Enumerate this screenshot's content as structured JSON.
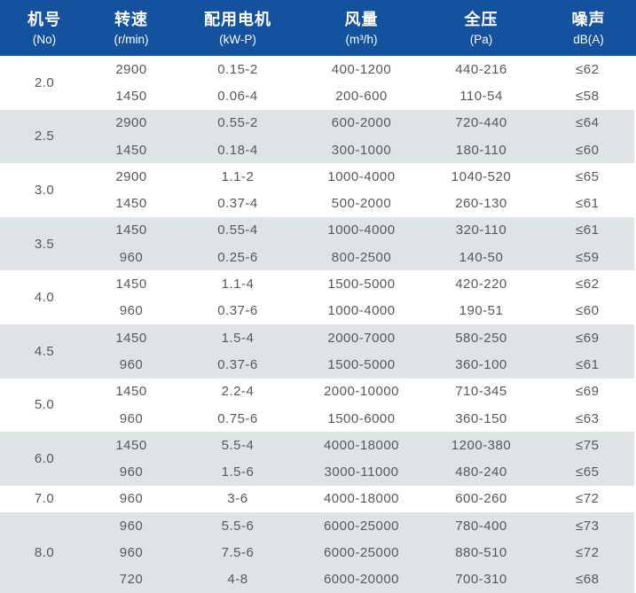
{
  "table": {
    "title": "fan-specification-table",
    "colors": {
      "header_bg": "#14519e",
      "header_text": "#ffffff",
      "row_bg": "#ffffff",
      "row_alt_bg": "#dee3e6",
      "cell_text": "#56585b"
    },
    "header": {
      "columns": [
        {
          "label": "机号",
          "unit": "(No)"
        },
        {
          "label": "转速",
          "unit": "(r/min)"
        },
        {
          "label": "配用电机",
          "unit": "(kW-P)"
        },
        {
          "label": "风量",
          "unit": "(m³/h)"
        },
        {
          "label": "全压",
          "unit": "(Pa)"
        },
        {
          "label": "噪声",
          "unit": "dB(A)"
        }
      ]
    },
    "groups": [
      {
        "no": "2.0",
        "rows": [
          {
            "speed": "2900",
            "motor": "0.15-2",
            "airflow": "400-1200",
            "pressure": "440-216",
            "noise": "≤62"
          },
          {
            "speed": "1450",
            "motor": "0.06-4",
            "airflow": "200-600",
            "pressure": "110-54",
            "noise": "≤58"
          }
        ]
      },
      {
        "no": "2.5",
        "rows": [
          {
            "speed": "2900",
            "motor": "0.55-2",
            "airflow": "600-2000",
            "pressure": "720-440",
            "noise": "≤64"
          },
          {
            "speed": "1450",
            "motor": "0.18-4",
            "airflow": "300-1000",
            "pressure": "180-110",
            "noise": "≤60"
          }
        ]
      },
      {
        "no": "3.0",
        "rows": [
          {
            "speed": "2900",
            "motor": "1.1-2",
            "airflow": "1000-4000",
            "pressure": "1040-520",
            "noise": "≤65"
          },
          {
            "speed": "1450",
            "motor": "0.37-4",
            "airflow": "500-2000",
            "pressure": "260-130",
            "noise": "≤61"
          }
        ]
      },
      {
        "no": "3.5",
        "rows": [
          {
            "speed": "1450",
            "motor": "0.55-4",
            "airflow": "1000-4000",
            "pressure": "320-110",
            "noise": "≤61"
          },
          {
            "speed": "960",
            "motor": "0.25-6",
            "airflow": "800-2500",
            "pressure": "140-50",
            "noise": "≤59"
          }
        ]
      },
      {
        "no": "4.0",
        "rows": [
          {
            "speed": "1450",
            "motor": "1.1-4",
            "airflow": "1500-5000",
            "pressure": "420-220",
            "noise": "≤62"
          },
          {
            "speed": "960",
            "motor": "0.37-6",
            "airflow": "1000-4000",
            "pressure": "190-51",
            "noise": "≤60"
          }
        ]
      },
      {
        "no": "4.5",
        "rows": [
          {
            "speed": "1450",
            "motor": "1.5-4",
            "airflow": "2000-7000",
            "pressure": "580-250",
            "noise": "≤69"
          },
          {
            "speed": "960",
            "motor": "0.37-6",
            "airflow": "1500-5000",
            "pressure": "360-100",
            "noise": "≤61"
          }
        ]
      },
      {
        "no": "5.0",
        "rows": [
          {
            "speed": "1450",
            "motor": "2.2-4",
            "airflow": "2000-10000",
            "pressure": "710-345",
            "noise": "≤69"
          },
          {
            "speed": "960",
            "motor": "0.75-6",
            "airflow": "1500-6000",
            "pressure": "360-150",
            "noise": "≤63"
          }
        ]
      },
      {
        "no": "6.0",
        "rows": [
          {
            "speed": "1450",
            "motor": "5.5-4",
            "airflow": "4000-18000",
            "pressure": "1200-380",
            "noise": "≤75"
          },
          {
            "speed": "960",
            "motor": "1.5-6",
            "airflow": "3000-11000",
            "pressure": "480-240",
            "noise": "≤65"
          }
        ]
      },
      {
        "no": "7.0",
        "rows": [
          {
            "speed": "960",
            "motor": "3-6",
            "airflow": "4000-18000",
            "pressure": "600-260",
            "noise": "≤72"
          }
        ]
      },
      {
        "no": "8.0",
        "rows": [
          {
            "speed": "960",
            "motor": "5.5-6",
            "airflow": "6000-25000",
            "pressure": "780-400",
            "noise": "≤73"
          },
          {
            "speed": "960",
            "motor": "7.5-6",
            "airflow": "6000-25000",
            "pressure": "880-510",
            "noise": "≤72"
          },
          {
            "speed": "720",
            "motor": "4-8",
            "airflow": "6000-20000",
            "pressure": "700-310",
            "noise": "≤68"
          }
        ]
      }
    ]
  }
}
